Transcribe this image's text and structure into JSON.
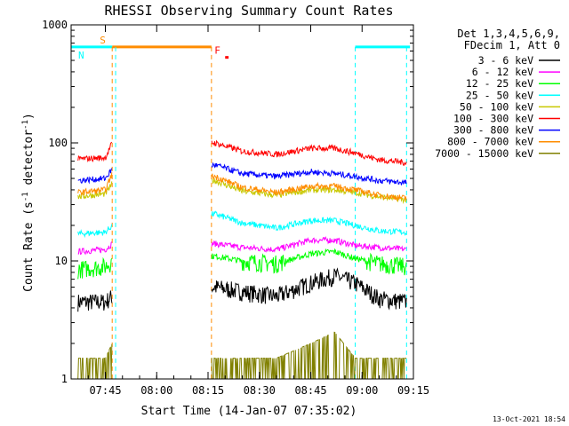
{
  "chart_data": {
    "type": "line",
    "title": "RHESSI Observing Summary Count Rates",
    "xlabel": "Start Time (14-Jan-07 07:35:02)",
    "ylabel_main": "Count Rate (s",
    "ylabel_sup1": "-1",
    "ylabel_mid": " detector",
    "ylabel_sup2": "-1",
    "ylabel_end": ")",
    "yscale": "log",
    "ylim": [
      1,
      1000
    ],
    "xlim": [
      "07:35",
      "09:15"
    ],
    "x_ticks": [
      "07:45",
      "08:00",
      "08:15",
      "08:30",
      "08:45",
      "09:00",
      "09:15"
    ],
    "y_ticks": [
      "1",
      "10",
      "100",
      "1000"
    ],
    "legend_header": [
      "Det 1,3,4,5,6,9,",
      "FDecim 1, Att 0"
    ],
    "legend_position": "right",
    "footer_date": "13-Oct-2021 18:54",
    "flags": [
      {
        "label": "S",
        "color": "#ff8c00",
        "level": 650,
        "start": "07:47",
        "end": "08:16"
      },
      {
        "label": "N",
        "color": "#00ffff",
        "level": 650,
        "start": "07:35",
        "end": "07:47"
      },
      {
        "label": "N",
        "color": "#00ffff",
        "level": 650,
        "start": "08:58",
        "end": "09:14"
      },
      {
        "label": "F",
        "color": "#ff0000",
        "level": 530,
        "start": "08:20",
        "end": "08:21"
      }
    ],
    "night_boundaries": [
      "07:48",
      "08:58",
      "09:13"
    ],
    "saa_boundaries": [
      "07:47",
      "08:16"
    ],
    "series": [
      {
        "name": "3 - 6 keV",
        "color": "#000000",
        "x": [
          "07:37",
          "07:45",
          "07:47",
          "08:17",
          "08:25",
          "08:35",
          "08:45",
          "08:52",
          "08:58",
          "09:05",
          "09:13"
        ],
        "y": [
          4.5,
          4.5,
          5,
          6,
          5.5,
          5,
          6.5,
          7.5,
          6.5,
          4.8,
          4.5
        ]
      },
      {
        "name": "6 - 12 keV",
        "color": "#ff00ff",
        "x": [
          "07:37",
          "07:45",
          "07:47",
          "08:17",
          "08:25",
          "08:35",
          "08:45",
          "08:52",
          "08:58",
          "09:05",
          "09:13"
        ],
        "y": [
          12,
          12.5,
          14,
          14,
          13,
          12.5,
          15,
          15,
          13.5,
          13,
          12.5
        ]
      },
      {
        "name": "12 - 25 keV",
        "color": "#00ff00",
        "x": [
          "07:37",
          "07:45",
          "07:47",
          "08:17",
          "08:25",
          "08:35",
          "08:45",
          "08:52",
          "08:58",
          "09:05",
          "09:13"
        ],
        "y": [
          8.5,
          9,
          10,
          11,
          10,
          9.5,
          11.5,
          12,
          10.5,
          9.5,
          9
        ]
      },
      {
        "name": "25 - 50 keV",
        "color": "#00ffff",
        "x": [
          "07:37",
          "07:45",
          "07:47",
          "08:17",
          "08:25",
          "08:35",
          "08:45",
          "08:52",
          "08:58",
          "09:05",
          "09:13"
        ],
        "y": [
          17,
          17.5,
          20,
          25,
          21,
          19,
          22,
          22,
          20,
          18,
          17.5
        ]
      },
      {
        "name": "50 - 100 keV",
        "color": "#c8c800",
        "x": [
          "07:37",
          "07:45",
          "07:47",
          "08:17",
          "08:25",
          "08:35",
          "08:45",
          "08:52",
          "08:58",
          "09:05",
          "09:13"
        ],
        "y": [
          35,
          37,
          45,
          48,
          39,
          36,
          40,
          40,
          38,
          35,
          33
        ]
      },
      {
        "name": "100 - 300 keV",
        "color": "#ff0000",
        "x": [
          "07:37",
          "07:45",
          "07:47",
          "08:17",
          "08:25",
          "08:35",
          "08:45",
          "08:52",
          "08:58",
          "09:05",
          "09:13"
        ],
        "y": [
          73,
          75,
          100,
          100,
          85,
          80,
          90,
          90,
          82,
          72,
          68
        ]
      },
      {
        "name": "300 - 800 keV",
        "color": "#0000ff",
        "x": [
          "07:37",
          "07:45",
          "07:47",
          "08:17",
          "08:25",
          "08:35",
          "08:45",
          "08:52",
          "08:58",
          "09:05",
          "09:13"
        ],
        "y": [
          48,
          50,
          60,
          65,
          55,
          52,
          57,
          55,
          52,
          48,
          46
        ]
      },
      {
        "name": "800 - 7000 keV",
        "color": "#ff8c00",
        "x": [
          "07:37",
          "07:45",
          "07:47",
          "08:17",
          "08:25",
          "08:35",
          "08:45",
          "08:52",
          "08:58",
          "09:05",
          "09:13"
        ],
        "y": [
          38,
          40,
          55,
          52,
          42,
          38,
          43,
          43,
          40,
          36,
          34
        ]
      },
      {
        "name": "7000 - 15000 keV",
        "color": "#808000",
        "x": [
          "07:37",
          "07:45",
          "07:47",
          "08:17",
          "08:25",
          "08:35",
          "08:45",
          "08:52",
          "08:58",
          "09:05",
          "09:13"
        ],
        "y": [
          1.5,
          1.5,
          2,
          1.5,
          1.5,
          1.5,
          2,
          2.5,
          1.5,
          1.5,
          1.5
        ]
      }
    ]
  }
}
